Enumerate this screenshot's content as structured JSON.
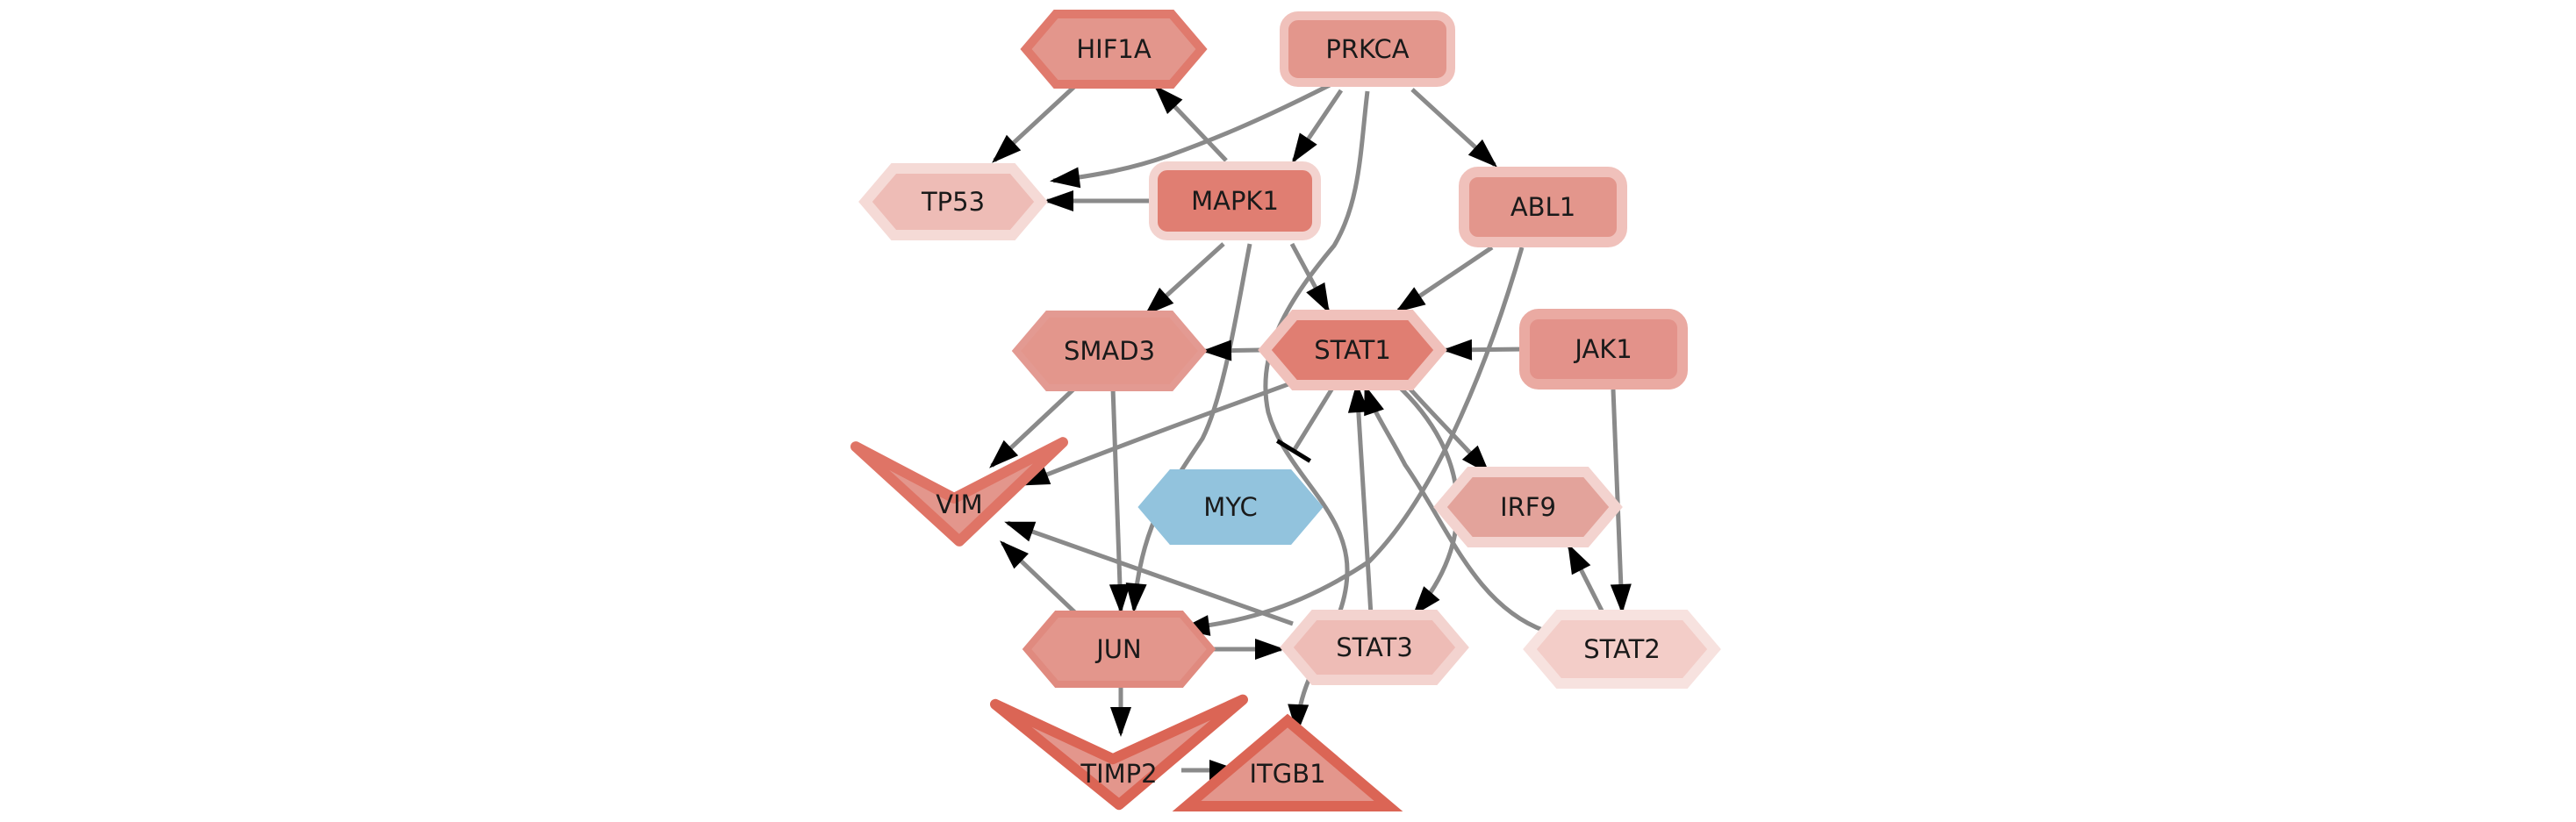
{
  "colors": {
    "edge": "#8a8a8a",
    "arrowhead": "#000000",
    "shade_dark": "#e07e72",
    "shade_medium": "#e3968c",
    "shade_light": "#eebcb6",
    "shade_pale": "#f3d3cf",
    "down_regulated": "#92c3dd",
    "label": "#1a1a1a"
  },
  "nodes": [
    {
      "id": "PRKCA",
      "label": "PRKCA",
      "shape": "round-rect",
      "fill": "#e3968c",
      "border": "#f0c1bb"
    },
    {
      "id": "HIF1A",
      "label": "HIF1A",
      "shape": "hexagon",
      "fill": "#e3968c",
      "border": "#e07a6d"
    },
    {
      "id": "TP53",
      "label": "TP53",
      "shape": "hexagon",
      "fill": "#eebcb6",
      "border": "#f5dad6"
    },
    {
      "id": "MAPK1",
      "label": "MAPK1",
      "shape": "round-rect",
      "fill": "#e07e72",
      "border": "#f3d3cf"
    },
    {
      "id": "ABL1",
      "label": "ABL1",
      "shape": "round-rect",
      "fill": "#e3968c",
      "border": "#f0c1bb"
    },
    {
      "id": "JAK1",
      "label": "JAK1",
      "shape": "round-rect",
      "fill": "#e3928a",
      "border": "#eaaaa2"
    },
    {
      "id": "SMAD3",
      "label": "SMAD3",
      "shape": "hexagon",
      "fill": "#e3968c",
      "border": "#e39a92"
    },
    {
      "id": "STAT1",
      "label": "STAT1",
      "shape": "hexagon",
      "fill": "#e07e72",
      "border": "#f0c1bb"
    },
    {
      "id": "VIM",
      "label": "VIM",
      "shape": "v",
      "fill": "#e3968c",
      "border": "#df7466"
    },
    {
      "id": "MYC",
      "label": "MYC",
      "shape": "hexagon",
      "fill": "#92c3dd",
      "border": "#92c3dd"
    },
    {
      "id": "IRF9",
      "label": "IRF9",
      "shape": "hexagon",
      "fill": "#e3a39b",
      "border": "#f3d3cf"
    },
    {
      "id": "JUN",
      "label": "JUN",
      "shape": "hexagon",
      "fill": "#e3968c",
      "border": "#e08a7f"
    },
    {
      "id": "STAT3",
      "label": "STAT3",
      "shape": "hexagon",
      "fill": "#eebcb6",
      "border": "#f3d3cf"
    },
    {
      "id": "STAT2",
      "label": "STAT2",
      "shape": "hexagon",
      "fill": "#f3cdc8",
      "border": "#f7e2df"
    },
    {
      "id": "TIMP2",
      "label": "TIMP2",
      "shape": "v",
      "fill": "#e3968c",
      "border": "#db6555"
    },
    {
      "id": "ITGB1",
      "label": "ITGB1",
      "shape": "triangle",
      "fill": "#e3968c",
      "border": "#db6555"
    }
  ],
  "edges": [
    {
      "from": "HIF1A",
      "to": "TP53",
      "type": "activation"
    },
    {
      "from": "PRKCA",
      "to": "TP53",
      "type": "activation"
    },
    {
      "from": "PRKCA",
      "to": "MAPK1",
      "type": "activation"
    },
    {
      "from": "PRKCA",
      "to": "ABL1",
      "type": "activation"
    },
    {
      "from": "PRKCA",
      "to": "ITGB1",
      "type": "activation"
    },
    {
      "from": "MAPK1",
      "to": "HIF1A",
      "type": "activation"
    },
    {
      "from": "MAPK1",
      "to": "TP53",
      "type": "activation"
    },
    {
      "from": "MAPK1",
      "to": "SMAD3",
      "type": "activation"
    },
    {
      "from": "MAPK1",
      "to": "STAT1",
      "type": "activation"
    },
    {
      "from": "MAPK1",
      "to": "JUN",
      "type": "activation"
    },
    {
      "from": "ABL1",
      "to": "STAT1",
      "type": "activation"
    },
    {
      "from": "ABL1",
      "to": "JUN",
      "type": "activation"
    },
    {
      "from": "JAK1",
      "to": "STAT1",
      "type": "activation"
    },
    {
      "from": "JAK1",
      "to": "STAT2",
      "type": "activation"
    },
    {
      "from": "STAT1",
      "to": "SMAD3",
      "type": "activation"
    },
    {
      "from": "STAT1",
      "to": "VIM",
      "type": "activation"
    },
    {
      "from": "STAT1",
      "to": "MYC",
      "type": "inhibition"
    },
    {
      "from": "STAT1",
      "to": "IRF9",
      "type": "activation"
    },
    {
      "from": "STAT1",
      "to": "STAT3",
      "type": "activation"
    },
    {
      "from": "SMAD3",
      "to": "VIM",
      "type": "activation"
    },
    {
      "from": "SMAD3",
      "to": "JUN",
      "type": "activation"
    },
    {
      "from": "STAT3",
      "to": "STAT1",
      "type": "activation"
    },
    {
      "from": "STAT3",
      "to": "VIM",
      "type": "activation"
    },
    {
      "from": "STAT2",
      "to": "STAT1",
      "type": "activation"
    },
    {
      "from": "STAT2",
      "to": "IRF9",
      "type": "activation"
    },
    {
      "from": "JUN",
      "to": "VIM",
      "type": "activation"
    },
    {
      "from": "JUN",
      "to": "STAT3",
      "type": "activation"
    },
    {
      "from": "JUN",
      "to": "TIMP2",
      "type": "activation"
    },
    {
      "from": "TIMP2",
      "to": "ITGB1",
      "type": "activation"
    }
  ]
}
